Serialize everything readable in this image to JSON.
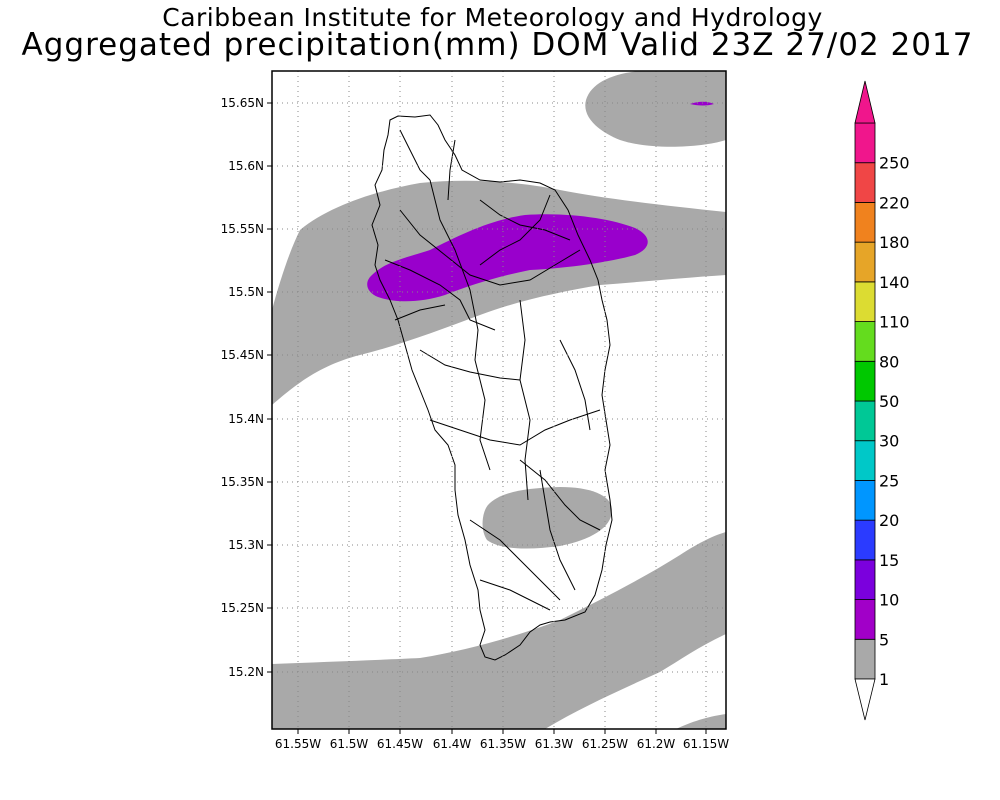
{
  "title": "Caribbean Institute for Meteorology and Hydrology",
  "subtitle": "Aggregated precipitation(mm) DOM Valid 23Z 27/02 2017",
  "map": {
    "lon_range": [
      -61.575,
      -61.14
    ],
    "lat_range": [
      15.155,
      15.68
    ],
    "grid": true,
    "x_ticks": [
      "61.55W",
      "61.5W",
      "61.45W",
      "61.4W",
      "61.35W",
      "61.3W",
      "61.25W",
      "61.2W",
      "61.15W"
    ],
    "y_ticks": [
      "15.65N",
      "15.6N",
      "15.55N",
      "15.5N",
      "15.45N",
      "15.4N",
      "15.35N",
      "15.3N",
      "15.25N",
      "15.2N"
    ],
    "region": "Dominica",
    "regions_shown": [
      {
        "category": "1-5 mm",
        "color": "#a9a9a9"
      },
      {
        "category": "5-10 mm",
        "color": "#9900cc"
      }
    ]
  },
  "colorbar": {
    "labels": [
      "1",
      "5",
      "10",
      "15",
      "20",
      "25",
      "30",
      "50",
      "80",
      "110",
      "140",
      "180",
      "220",
      "250"
    ],
    "colors": [
      "#a9a9a9",
      "#a100c8",
      "#7b00dd",
      "#2b3bff",
      "#0096ff",
      "#00c8c8",
      "#00c896",
      "#00c800",
      "#64dc1e",
      "#dcdc32",
      "#e6a528",
      "#f0821e",
      "#f04646",
      "#f0168c"
    ]
  }
}
